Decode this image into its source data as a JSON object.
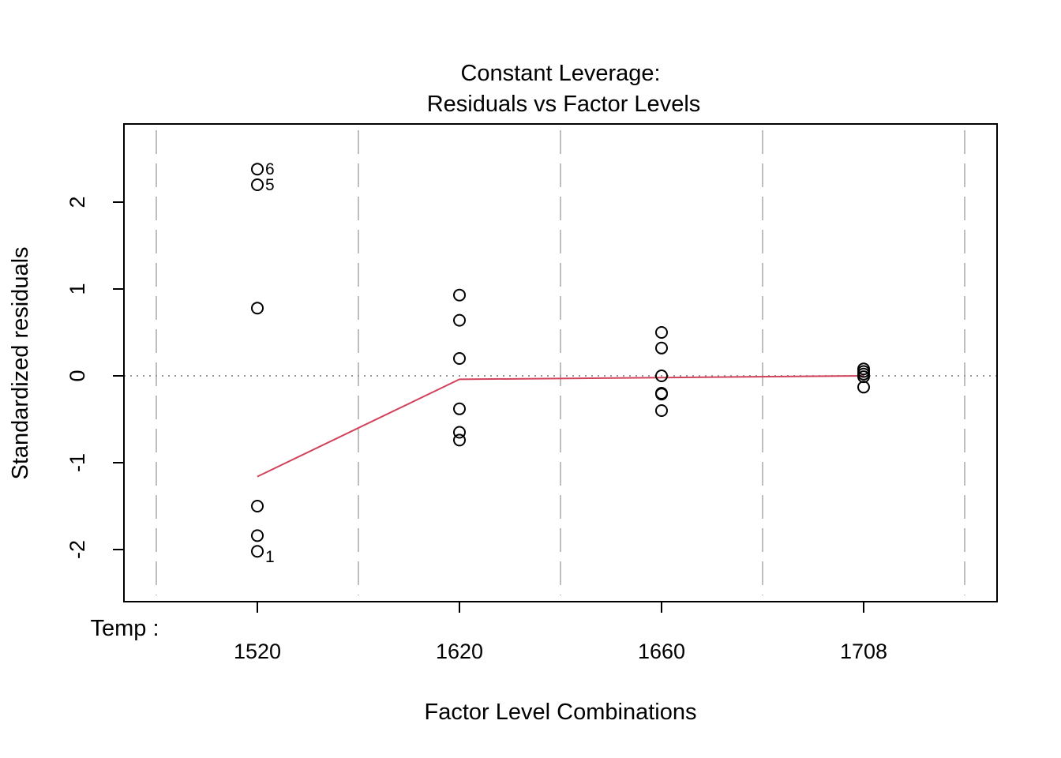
{
  "chart_data": {
    "type": "scatter",
    "title": "Constant Leverage:",
    "subtitle": "Residuals vs Factor Levels",
    "xlabel": "Factor Level Combinations",
    "ylabel": "Standardized residuals",
    "factor_prefix": "Temp :",
    "categories": [
      "1520",
      "1620",
      "1660",
      "1708"
    ],
    "ylim": [
      -2.6,
      2.9
    ],
    "y_ticks": [
      -2,
      -1,
      0,
      1,
      2
    ],
    "y_tick_labels": [
      "-2",
      "-1",
      "0",
      "1",
      "2"
    ],
    "colors": {
      "smooth_line": "#d1435b",
      "points": "#000000",
      "reference": "#9a9a9a",
      "separators": "#bebebe"
    },
    "points": [
      {
        "category": "1520",
        "y": 2.38,
        "label": "6"
      },
      {
        "category": "1520",
        "y": 2.2,
        "label": "5"
      },
      {
        "category": "1520",
        "y": 0.78
      },
      {
        "category": "1520",
        "y": -1.5
      },
      {
        "category": "1520",
        "y": -1.84
      },
      {
        "category": "1520",
        "y": -2.02,
        "label": "1"
      },
      {
        "category": "1620",
        "y": 0.93
      },
      {
        "category": "1620",
        "y": 0.64
      },
      {
        "category": "1620",
        "y": 0.2
      },
      {
        "category": "1620",
        "y": -0.38
      },
      {
        "category": "1620",
        "y": -0.65
      },
      {
        "category": "1620",
        "y": -0.74
      },
      {
        "category": "1660",
        "y": 0.5
      },
      {
        "category": "1660",
        "y": 0.32
      },
      {
        "category": "1660",
        "y": 0.0
      },
      {
        "category": "1660",
        "y": -0.2
      },
      {
        "category": "1660",
        "y": -0.21
      },
      {
        "category": "1660",
        "y": -0.4
      },
      {
        "category": "1708",
        "y": 0.08
      },
      {
        "category": "1708",
        "y": 0.05
      },
      {
        "category": "1708",
        "y": 0.02
      },
      {
        "category": "1708",
        "y": -0.01
      },
      {
        "category": "1708",
        "y": -0.13
      }
    ],
    "smooth_line": [
      {
        "category": "1520",
        "y": -1.16
      },
      {
        "category": "1620",
        "y": -0.04
      },
      {
        "category": "1660",
        "y": -0.02
      },
      {
        "category": "1708",
        "y": 0.0
      }
    ],
    "reference_line_y": 0,
    "grid": false
  }
}
